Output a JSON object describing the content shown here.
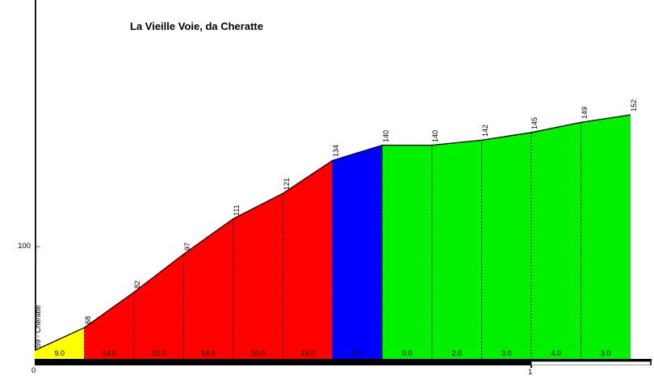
{
  "title": "La Vieille Voie, da Cheratte",
  "y_axis": {
    "tick_label": "100"
  },
  "x_axis": {
    "tick_labels": {
      "start": "0",
      "km1": "1"
    }
  },
  "chart_data": {
    "type": "area",
    "title": "La Vieille Voie, da Cheratte",
    "x_km": [
      0.0,
      0.1,
      0.2,
      0.3,
      0.4,
      0.5,
      0.6,
      0.7,
      0.8,
      0.9,
      1.0,
      1.1,
      1.2
    ],
    "elevations_m": [
      59,
      68,
      82,
      97,
      111,
      121,
      134,
      140,
      140,
      142,
      145,
      149,
      152
    ],
    "point_labels": [
      "59 - Cheratte",
      "68",
      "82",
      "97",
      "111",
      "121",
      "134",
      "140",
      "140",
      "142",
      "145",
      "149",
      "152"
    ],
    "segment_gradients_pct": [
      "9.0",
      "14.0",
      "15.0",
      "14.0",
      "10.0",
      "13.0",
      "6.0",
      "0.0",
      "2.0",
      "3.0",
      "4.0",
      "3.0"
    ],
    "segment_colors": [
      "yellow",
      "red",
      "red",
      "red",
      "red",
      "red",
      "blue",
      "green",
      "green",
      "green",
      "green",
      "green"
    ],
    "color_hex": {
      "yellow": "#ffff00",
      "red": "#ff0000",
      "blue": "#0000ff",
      "green": "#00f000"
    },
    "y_tick_elevation_m": 100,
    "x_ticks_km": [
      0,
      1
    ],
    "total_length_km": 1.2,
    "grid": "dashed vertical separator every 100 m",
    "legend": "none"
  }
}
